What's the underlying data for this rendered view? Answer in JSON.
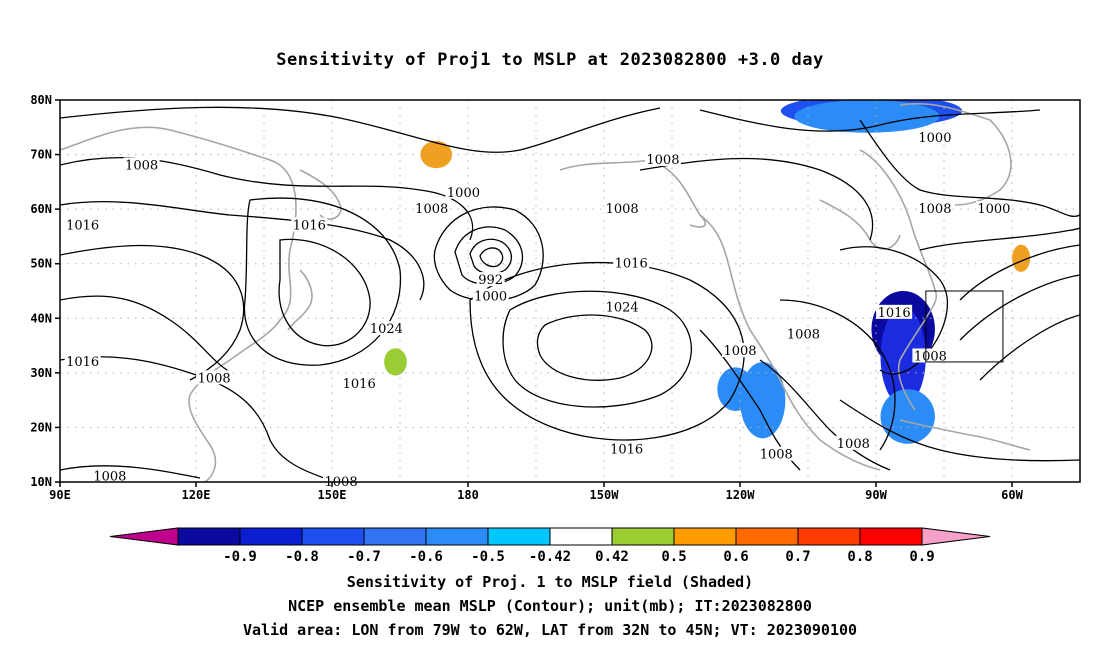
{
  "title": "Sensitivity of Proj1 to MSLP at 2023082800 +3.0 day",
  "map": {
    "lon_labels": [
      "90E",
      "120E",
      "150E",
      "180",
      "150W",
      "120W",
      "90W",
      "60W"
    ],
    "lat_labels": [
      "80N",
      "70N",
      "60N",
      "50N",
      "40N",
      "30N",
      "20N",
      "10N"
    ],
    "contour_labels": [
      {
        "text": "1008",
        "lon": 108,
        "lat": 68
      },
      {
        "text": "1000",
        "lon": 179,
        "lat": 63
      },
      {
        "text": "1008",
        "lon": 172,
        "lat": 60
      },
      {
        "text": "1016",
        "lon": 145,
        "lat": 57
      },
      {
        "text": "1016",
        "lon": 95,
        "lat": 57
      },
      {
        "text": "1008",
        "lon": 223,
        "lat": 69
      },
      {
        "text": "1008",
        "lon": 214,
        "lat": 60
      },
      {
        "text": "1000",
        "lon": 283,
        "lat": 73
      },
      {
        "text": "1008",
        "lon": 283,
        "lat": 60
      },
      {
        "text": "1000",
        "lon": 296,
        "lat": 60
      },
      {
        "text": "992",
        "lon": 185,
        "lat": 47
      },
      {
        "text": "1000",
        "lon": 185,
        "lat": 44
      },
      {
        "text": "1016",
        "lon": 216,
        "lat": 50
      },
      {
        "text": "1024",
        "lon": 214,
        "lat": 42
      },
      {
        "text": "1024",
        "lon": 162,
        "lat": 38
      },
      {
        "text": "1016",
        "lon": 95,
        "lat": 32
      },
      {
        "text": "1008",
        "lon": 124,
        "lat": 29
      },
      {
        "text": "1016",
        "lon": 156,
        "lat": 28
      },
      {
        "text": "1008",
        "lon": 240,
        "lat": 34
      },
      {
        "text": "1008",
        "lon": 254,
        "lat": 37
      },
      {
        "text": "1016",
        "lon": 274,
        "lat": 41
      },
      {
        "text": "1008",
        "lon": 282,
        "lat": 33
      },
      {
        "text": "1016",
        "lon": 215,
        "lat": 16
      },
      {
        "text": "1008",
        "lon": 265,
        "lat": 17
      },
      {
        "text": "1008",
        "lon": 248,
        "lat": 15
      },
      {
        "text": "1008",
        "lon": 101,
        "lat": 11
      },
      {
        "text": "1008",
        "lon": 152,
        "lat": 10
      }
    ],
    "valid_area": {
      "lon_range": [
        281,
        298
      ],
      "lat_range": [
        32,
        45
      ]
    },
    "sensitivity_regions": [
      {
        "level": -0.6,
        "color": "#1e50f0",
        "lon": 269,
        "lat": 78,
        "rlon": 20,
        "rlat": 3
      },
      {
        "level": -0.5,
        "color": "#2b8cf7",
        "lon": 268,
        "lat": 77,
        "rlon": 16,
        "rlat": 3
      },
      {
        "level": -0.8,
        "color": "#0a0aa0",
        "lon": 276,
        "lat": 38,
        "rlon": 7,
        "rlat": 7
      },
      {
        "level": -0.7,
        "color": "#1a2be0",
        "lon": 276,
        "lat": 33,
        "rlon": 5,
        "rlat": 9
      },
      {
        "level": -0.5,
        "color": "#2b8cf7",
        "lon": 277,
        "lat": 22,
        "rlon": 6,
        "rlat": 5
      },
      {
        "level": -0.5,
        "color": "#2b8cf7",
        "lon": 245,
        "lat": 25,
        "rlon": 5,
        "rlat": 7
      },
      {
        "level": -0.5,
        "color": "#2b8cf7",
        "lon": 239,
        "lat": 27,
        "rlon": 4,
        "rlat": 4
      },
      {
        "level": 0.6,
        "color": "#f0a020",
        "lon": 173,
        "lat": 70,
        "rlon": 3.5,
        "rlat": 2.5
      },
      {
        "level": 0.6,
        "color": "#f0a020",
        "lon": 302,
        "lat": 51,
        "rlon": 2,
        "rlat": 2.5
      },
      {
        "level": 0.5,
        "color": "#9acd32",
        "lon": 164,
        "lat": 32,
        "rlon": 2.5,
        "rlat": 2.5
      }
    ]
  },
  "colorbar": {
    "colors": [
      "#c0008c",
      "#0a0aa0",
      "#0c1ed2",
      "#1e50f0",
      "#3273f4",
      "#2b8cf7",
      "#00c8ff",
      "#ffffff",
      "#9acd32",
      "#ff9c00",
      "#ff6a00",
      "#ff3c00",
      "#ff0000",
      "#f5a0c8"
    ],
    "tick_labels": [
      "-0.9",
      "-0.8",
      "-0.7",
      "-0.6",
      "-0.5",
      "-0.42",
      "0.42",
      "0.5",
      "0.6",
      "0.7",
      "0.8",
      "0.9"
    ]
  },
  "captions": {
    "line1": "Sensitivity of Proj. 1 to MSLP field (Shaded)",
    "line2": "NCEP ensemble mean MSLP (Contour); unit(mb); IT:2023082800",
    "line3": "Valid area: LON from 79W to 62W, LAT from 32N to 45N; VT: 2023090100"
  }
}
